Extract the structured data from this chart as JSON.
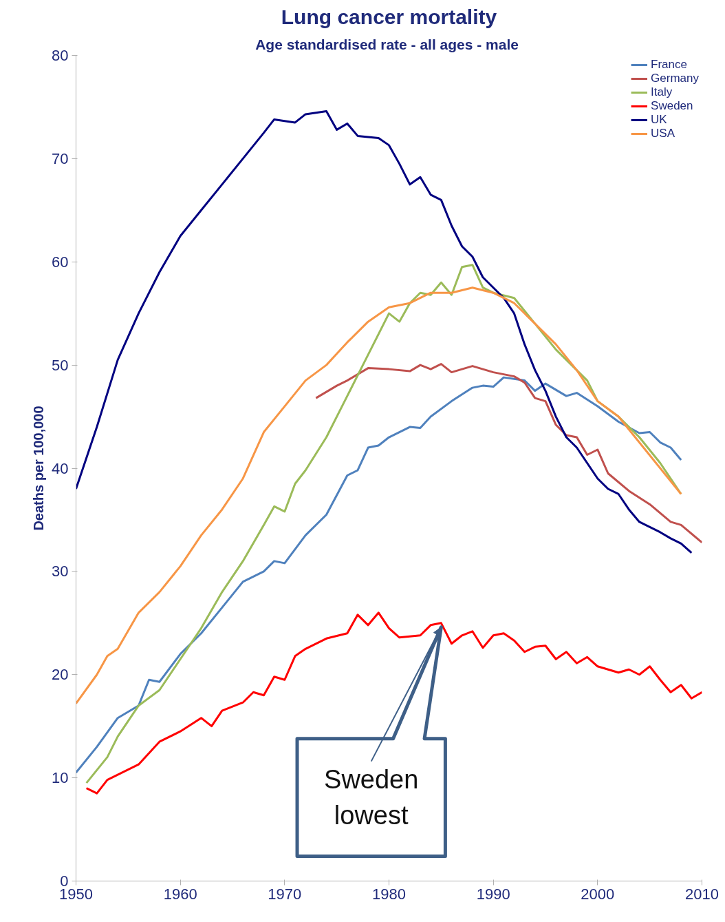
{
  "chart_data": {
    "type": "line",
    "title": "Lung cancer mortality",
    "subtitle": "Age standardised rate  - all ages - male",
    "ylabel": "Deaths per 100,000",
    "xlim": [
      1950,
      2010
    ],
    "xticks": [
      1950,
      1960,
      1970,
      1980,
      1990,
      2000,
      2010
    ],
    "ylim": [
      0,
      80
    ],
    "yticks": [
      0,
      10,
      20,
      30,
      40,
      50,
      60,
      70,
      80
    ],
    "grid": false,
    "legend": "top right",
    "marker": "none",
    "line_style": "solid",
    "series": [
      {
        "name": "France",
        "color": "#4f81bd",
        "x": [
          1950,
          1952,
          1954,
          1956,
          1957,
          1958,
          1960,
          1962,
          1964,
          1966,
          1968,
          1969,
          1970,
          1972,
          1974,
          1976,
          1977,
          1978,
          1979,
          1980,
          1982,
          1983,
          1984,
          1986,
          1988,
          1989,
          1990,
          1991,
          1993,
          1994,
          1995,
          1997,
          1998,
          2000,
          2002,
          2004,
          2005,
          2006,
          2007,
          2008
        ],
        "values": [
          10.5,
          13,
          15.8,
          17,
          19.5,
          19.3,
          22,
          24,
          26.5,
          29,
          30,
          31,
          30.8,
          33.5,
          35.5,
          39.3,
          39.8,
          42,
          42.2,
          43,
          44,
          43.9,
          45,
          46.5,
          47.8,
          48,
          47.9,
          48.8,
          48.5,
          47.5,
          48.2,
          47,
          47.3,
          46,
          44.5,
          43.4,
          43.5,
          42.5,
          42,
          40.8
        ]
      },
      {
        "name": "Germany",
        "color": "#c0504d",
        "x": [
          1973,
          1975,
          1976,
          1978,
          1980,
          1982,
          1983,
          1984,
          1985,
          1986,
          1988,
          1990,
          1992,
          1993,
          1994,
          1995,
          1996,
          1997,
          1998,
          1999,
          2000,
          2001,
          2003,
          2005,
          2007,
          2008,
          2010
        ],
        "values": [
          46.8,
          48,
          48.5,
          49.7,
          49.6,
          49.4,
          50,
          49.6,
          50.1,
          49.3,
          49.9,
          49.3,
          48.9,
          48.3,
          46.8,
          46.5,
          44.2,
          43.2,
          43,
          41.3,
          41.8,
          39.5,
          37.8,
          36.5,
          34.8,
          34.5,
          32.8
        ]
      },
      {
        "name": "Italy",
        "color": "#9bbb59",
        "x": [
          1951,
          1953,
          1954,
          1956,
          1958,
          1960,
          1962,
          1964,
          1966,
          1968,
          1969,
          1970,
          1971,
          1972,
          1974,
          1976,
          1978,
          1980,
          1981,
          1982,
          1983,
          1984,
          1985,
          1986,
          1987,
          1988,
          1989,
          1990,
          1992,
          1994,
          1996,
          1998,
          1999,
          2000,
          2002,
          2004,
          2006,
          2008
        ],
        "values": [
          9.5,
          12,
          14,
          17,
          18.5,
          21.5,
          24.5,
          28,
          31,
          34.5,
          36.3,
          35.8,
          38.5,
          39.8,
          43,
          47,
          51,
          55,
          54.2,
          56,
          57,
          56.8,
          58,
          56.8,
          59.5,
          59.7,
          57.5,
          57,
          56.5,
          54,
          51.5,
          49.5,
          48.5,
          46.5,
          45,
          43,
          40.5,
          37.5
        ]
      },
      {
        "name": "Sweden",
        "color": "#ff0000",
        "x": [
          1951,
          1952,
          1953,
          1955,
          1956,
          1958,
          1960,
          1962,
          1963,
          1964,
          1966,
          1967,
          1968,
          1969,
          1970,
          1971,
          1972,
          1974,
          1976,
          1977,
          1978,
          1979,
          1980,
          1981,
          1983,
          1984,
          1985,
          1986,
          1987,
          1988,
          1989,
          1990,
          1991,
          1992,
          1993,
          1994,
          1995,
          1996,
          1997,
          1998,
          1999,
          2000,
          2002,
          2003,
          2004,
          2005,
          2006,
          2007,
          2008,
          2009,
          2010
        ],
        "values": [
          9,
          8.5,
          9.8,
          10.8,
          11.3,
          13.5,
          14.5,
          15.8,
          15,
          16.5,
          17.3,
          18.3,
          18,
          19.8,
          19.5,
          21.8,
          22.5,
          23.5,
          24,
          25.8,
          24.8,
          26,
          24.5,
          23.6,
          23.8,
          24.8,
          25,
          23,
          23.8,
          24.2,
          22.6,
          23.8,
          24,
          23.3,
          22.2,
          22.7,
          22.8,
          21.5,
          22.2,
          21.1,
          21.7,
          20.8,
          20.2,
          20.5,
          20,
          20.8,
          19.5,
          18.3,
          19,
          17.7,
          18.3
        ]
      },
      {
        "name": "UK",
        "color": "#000080",
        "x": [
          1950,
          1952,
          1954,
          1956,
          1958,
          1960,
          1962,
          1964,
          1966,
          1968,
          1969,
          1971,
          1972,
          1974,
          1975,
          1976,
          1977,
          1979,
          1980,
          1981,
          1982,
          1983,
          1984,
          1985,
          1986,
          1987,
          1988,
          1989,
          1990,
          1991,
          1992,
          1993,
          1994,
          1995,
          1996,
          1997,
          1998,
          1999,
          2000,
          2001,
          2002,
          2003,
          2004,
          2005,
          2006,
          2007,
          2008,
          2009
        ],
        "values": [
          38,
          44,
          50.5,
          55,
          59,
          62.5,
          65,
          67.5,
          70,
          72.5,
          73.8,
          73.5,
          74.3,
          74.6,
          72.8,
          73.4,
          72.2,
          72,
          71.3,
          69.5,
          67.5,
          68.2,
          66.5,
          66,
          63.5,
          61.5,
          60.5,
          58.5,
          57.5,
          56.5,
          55,
          52,
          49.5,
          47.5,
          45,
          43,
          42,
          40.5,
          39,
          38,
          37.5,
          36,
          34.8,
          34.3,
          33.8,
          33.2,
          32.7,
          31.8
        ]
      },
      {
        "name": "USA",
        "color": "#f79646",
        "x": [
          1950,
          1952,
          1953,
          1954,
          1956,
          1958,
          1960,
          1962,
          1964,
          1966,
          1968,
          1970,
          1972,
          1974,
          1976,
          1978,
          1980,
          1982,
          1984,
          1986,
          1988,
          1990,
          1992,
          1994,
          1996,
          1998,
          2000,
          2002,
          2004,
          2006,
          2008
        ],
        "values": [
          17.2,
          20,
          21.8,
          22.5,
          26,
          28,
          30.5,
          33.5,
          36,
          39,
          43.5,
          46,
          48.5,
          50,
          52.2,
          54.2,
          55.6,
          56,
          57,
          57,
          57.5,
          57,
          56,
          54,
          52,
          49.5,
          46.5,
          45,
          42.5,
          40,
          37.5
        ]
      }
    ],
    "annotations": [
      {
        "text": "Sweden\nlowest",
        "x": 1985,
        "y": 25
      }
    ]
  }
}
